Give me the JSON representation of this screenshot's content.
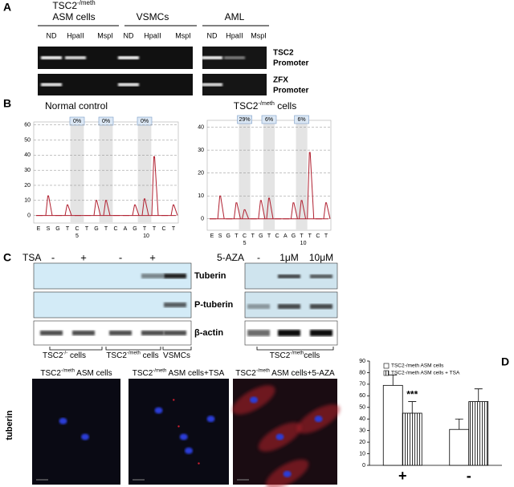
{
  "panel_labels": [
    "A",
    "B",
    "C",
    "D"
  ],
  "panel_a": {
    "group_1": {
      "base": "TSC2",
      "sup": "-/meth",
      "line2": "ASM cells"
    },
    "group_2": "VSMCs",
    "group_3": "AML",
    "lanes": [
      "ND",
      "HpaII",
      "MspI",
      "ND",
      "HpaII",
      "MspI",
      "ND",
      "HpaII",
      "MspI"
    ],
    "rows": [
      [
        "TSC2",
        "Promoter"
      ],
      [
        "ZFX",
        "Promoter"
      ]
    ]
  },
  "panel_b": [
    {
      "title": {
        "base": "Normal control"
      },
      "ylim": [
        -5,
        62
      ],
      "yticks": [
        0,
        10,
        20,
        30,
        40,
        50,
        60
      ],
      "dispensations": [
        "E",
        "S",
        "G",
        "T",
        "C",
        "T",
        "G",
        "T",
        "C",
        "A",
        "G",
        "T",
        "T",
        "C",
        "T"
      ],
      "positions": [
        5,
        10
      ],
      "percents": [
        "0%",
        "0%",
        "0%"
      ],
      "peaks": [
        0,
        13,
        0,
        7,
        0,
        0,
        10,
        10,
        0,
        0,
        7,
        11,
        39,
        0,
        7
      ]
    },
    {
      "title": {
        "base": "TSC2",
        "sup": "-/meth",
        "rest": " cells"
      },
      "ylim": [
        -5,
        43
      ],
      "yticks": [
        0,
        10,
        20,
        30,
        40
      ],
      "dispensations": [
        "E",
        "S",
        "G",
        "T",
        "C",
        "T",
        "G",
        "T",
        "C",
        "A",
        "G",
        "T",
        "T",
        "C",
        "T"
      ],
      "positions": [
        5,
        10
      ],
      "percents": [
        "29%",
        "6%",
        "6%"
      ],
      "peaks": [
        0,
        10,
        0,
        7,
        4,
        0,
        8,
        9,
        0,
        0,
        7,
        8,
        29,
        0,
        7
      ]
    }
  ],
  "panel_c": {
    "tsa_label": "TSA",
    "tsa_lanes": [
      "-",
      "+",
      "-",
      "+"
    ],
    "blots": [
      "Tuberin",
      "P-tuberin",
      "β-actin"
    ],
    "groups": [
      {
        "base": "TSC2",
        "sup": "-/-",
        "rest": " cells"
      },
      {
        "base": "TSC2",
        "sup": "-/meth",
        "rest": " cells"
      },
      {
        "base": "VSMCs"
      }
    ],
    "aza_label": "5-AZA",
    "aza_lanes": [
      "-",
      "1μM",
      "10μM"
    ],
    "aza_group": {
      "base": "TSC2",
      "sup": "-/meth",
      "rest": "cells"
    }
  },
  "images": {
    "row_label": "tuberin",
    "captions": [
      {
        "base": "TSC2",
        "sup": "-/meth",
        "rest": " ASM cells"
      },
      {
        "base": "TSC2",
        "sup": "-/meth",
        "rest": " ASM cells+TSA"
      },
      {
        "base": "TSC2",
        "sup": "-/meth",
        "rest": " ASM cells+5-AZA"
      }
    ]
  },
  "chart_data": {
    "type": "bar",
    "categories": [
      "+",
      "-"
    ],
    "series": [
      {
        "name": "TSC2-/meth ASM cells",
        "color": "#ffffff",
        "values": [
          69,
          31
        ],
        "errors": [
          9,
          9
        ]
      },
      {
        "name": "TSC2-/meth ASM cells + TSA",
        "color": "hatched",
        "values": [
          45,
          55
        ],
        "errors": [
          10,
          11
        ]
      }
    ],
    "ylim": [
      0,
      90
    ],
    "yticks": [
      0,
      10,
      20,
      30,
      40,
      50,
      60,
      70,
      80,
      90
    ],
    "annotation": "***"
  }
}
